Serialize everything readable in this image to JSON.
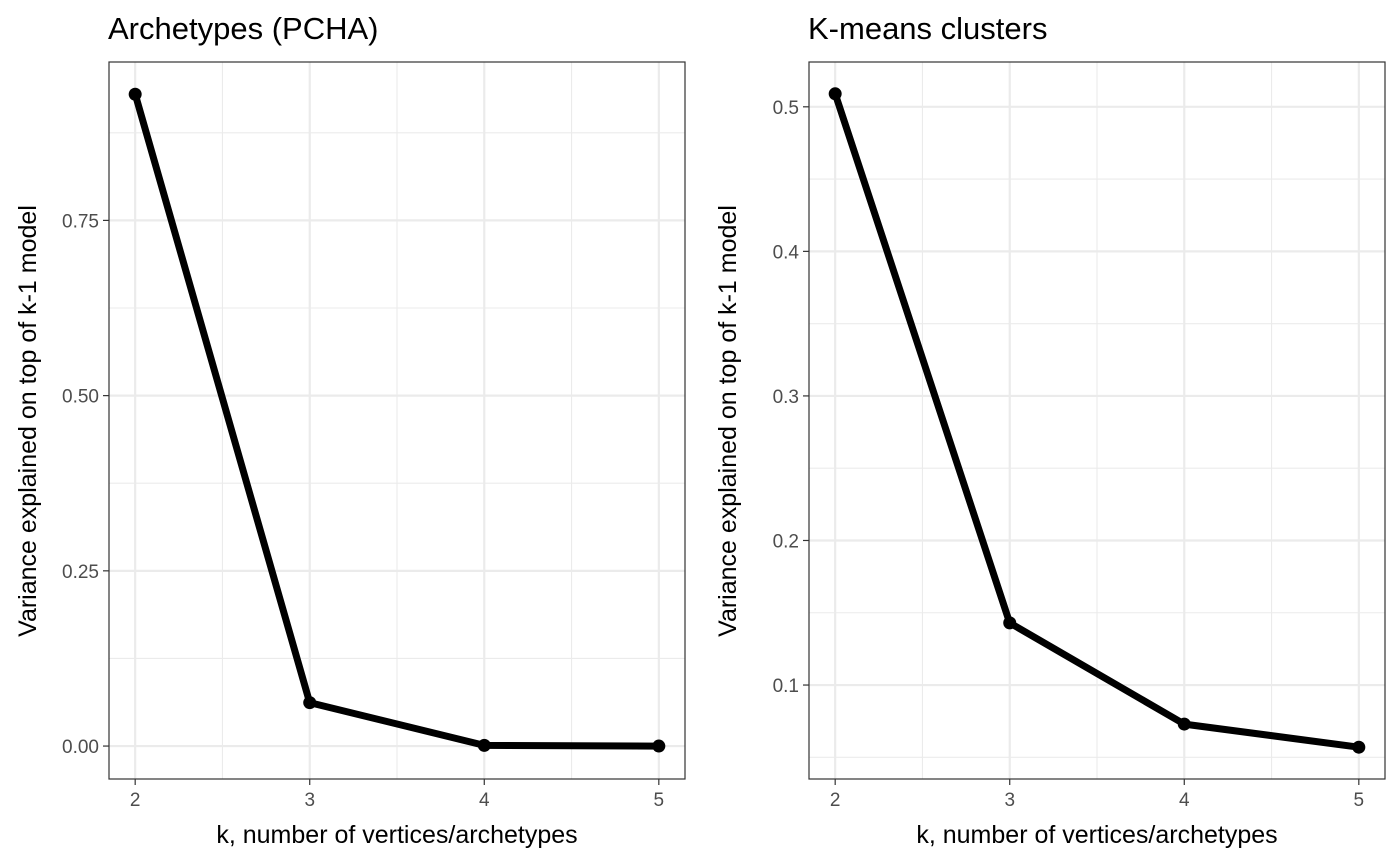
{
  "colors": {
    "line": "#000000",
    "grid": "#ebebeb",
    "tick_text": "#4d4d4d",
    "border": "#333333"
  },
  "chart_data": [
    {
      "type": "line",
      "title": "Archetypes (PCHA)",
      "xlabel": "k, number of vertices/archetypes",
      "ylabel": "Variance explained on top of k-1 model",
      "x": [
        2,
        3,
        4,
        5
      ],
      "values": [
        0.93,
        0.062,
        0.001,
        0.0
      ],
      "xlim": [
        1.85,
        5.15
      ],
      "ylim": [
        -0.047,
        0.976
      ],
      "xticks": [
        2,
        3,
        4,
        5
      ],
      "xtick_labels": [
        "2",
        "3",
        "4",
        "5"
      ],
      "yticks": [
        0,
        0.25,
        0.5,
        0.75
      ],
      "ytick_labels": [
        "0.00",
        "0.25",
        "0.50",
        "0.75"
      ],
      "grid": true,
      "legend": "none"
    },
    {
      "type": "line",
      "title": "K-means clusters",
      "xlabel": "k, number of vertices/archetypes",
      "ylabel": "Variance explained on top of k-1 model",
      "x": [
        2,
        3,
        4,
        5
      ],
      "values": [
        0.509,
        0.143,
        0.073,
        0.057
      ],
      "xlim": [
        1.85,
        5.15
      ],
      "ylim": [
        0.035,
        0.531
      ],
      "xticks": [
        2,
        3,
        4,
        5
      ],
      "xtick_labels": [
        "2",
        "3",
        "4",
        "5"
      ],
      "yticks": [
        0.1,
        0.2,
        0.3,
        0.4,
        0.5
      ],
      "ytick_labels": [
        "0.1",
        "0.2",
        "0.3",
        "0.4",
        "0.5"
      ],
      "grid": true,
      "legend": "none"
    }
  ]
}
